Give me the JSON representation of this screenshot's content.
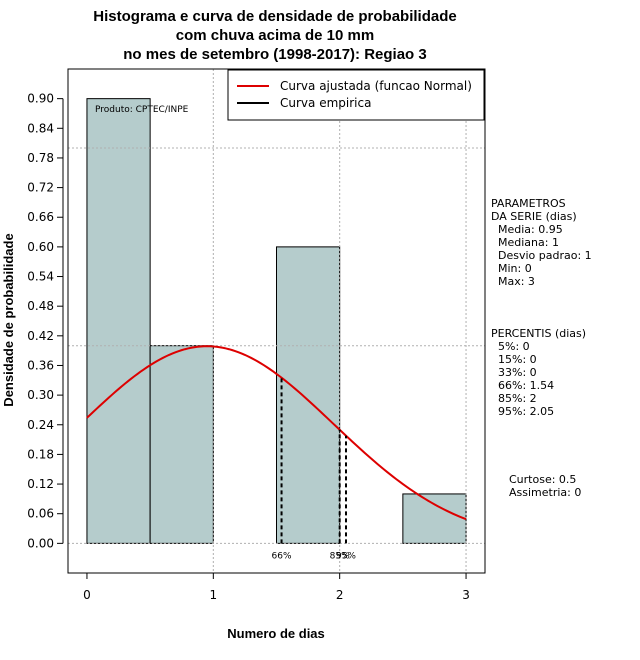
{
  "chart_data": {
    "type": "bar",
    "title_lines": [
      "Histograma e curva de densidade de probabilidade",
      "com chuva acima de 10 mm",
      "no mes de setembro (1998-2017): Regiao 3"
    ],
    "xlabel": "Numero de dias",
    "ylabel": "Densidade de probabilidade",
    "xlim": [
      -0.15,
      3.15
    ],
    "ylim": [
      -0.06,
      0.96
    ],
    "x_ticks": [
      0,
      1,
      2,
      3
    ],
    "y_ticks": [
      0.0,
      0.06,
      0.12,
      0.18,
      0.24,
      0.3,
      0.36,
      0.42,
      0.48,
      0.54,
      0.6,
      0.66,
      0.72,
      0.78,
      0.84,
      0.9
    ],
    "y_tick_labels": [
      "0.00",
      "0.06",
      "0.12",
      "0.18",
      "0.24",
      "0.30",
      "0.36",
      "0.42",
      "0.48",
      "0.54",
      "0.60",
      "0.66",
      "0.72",
      "0.78",
      "0.84",
      "0.90"
    ],
    "bins": [
      {
        "x0": 0.0,
        "x1": 0.5,
        "density": 0.9
      },
      {
        "x0": 0.5,
        "x1": 1.0,
        "density": 0.4
      },
      {
        "x0": 1.0,
        "x1": 1.5,
        "density": 0.0
      },
      {
        "x0": 1.5,
        "x1": 2.0,
        "density": 0.6
      },
      {
        "x0": 2.0,
        "x1": 2.5,
        "density": 0.0
      },
      {
        "x0": 2.5,
        "x1": 3.0,
        "density": 0.1
      }
    ],
    "normal_fit": {
      "mean": 0.95,
      "sd": 1.0,
      "x_from": 0,
      "x_to": 3
    },
    "grid_x": [
      1,
      2,
      3
    ],
    "grid_y": [
      0.0,
      0.4,
      0.8
    ],
    "percentile_markers": [
      {
        "label": "66%",
        "x": 1.54
      },
      {
        "label": "85%",
        "x": 2.0
      },
      {
        "label": "95%",
        "x": 2.05
      }
    ],
    "legend": [
      {
        "label": "Curva ajustada (funcao Normal)",
        "color": "#dd0000"
      },
      {
        "label": "Curva empirica",
        "color": "#000000"
      }
    ],
    "legend_position": "top-right",
    "annotation": "Produto: CPTEC/INPE",
    "side_panel": {
      "parametros": [
        "PARAMETROS",
        "DA SERIE (dias)",
        "  Media: 0.95",
        "  Mediana: 1",
        "  Desvio padrao: 1",
        "  Min: 0",
        "  Max: 3"
      ],
      "percentis": [
        "PERCENTIS (dias)",
        "  5%: 0",
        "  15%: 0",
        "  33%: 0",
        "  66%: 1.54",
        "  85%: 2",
        "  95%: 2.05"
      ],
      "shape": [
        "Curtose: 0.5",
        "Assimetria: 0"
      ]
    },
    "colors": {
      "bar_fill": "#b5cccc",
      "curve": "#dd0000",
      "grid": "#b0b0b0"
    }
  }
}
